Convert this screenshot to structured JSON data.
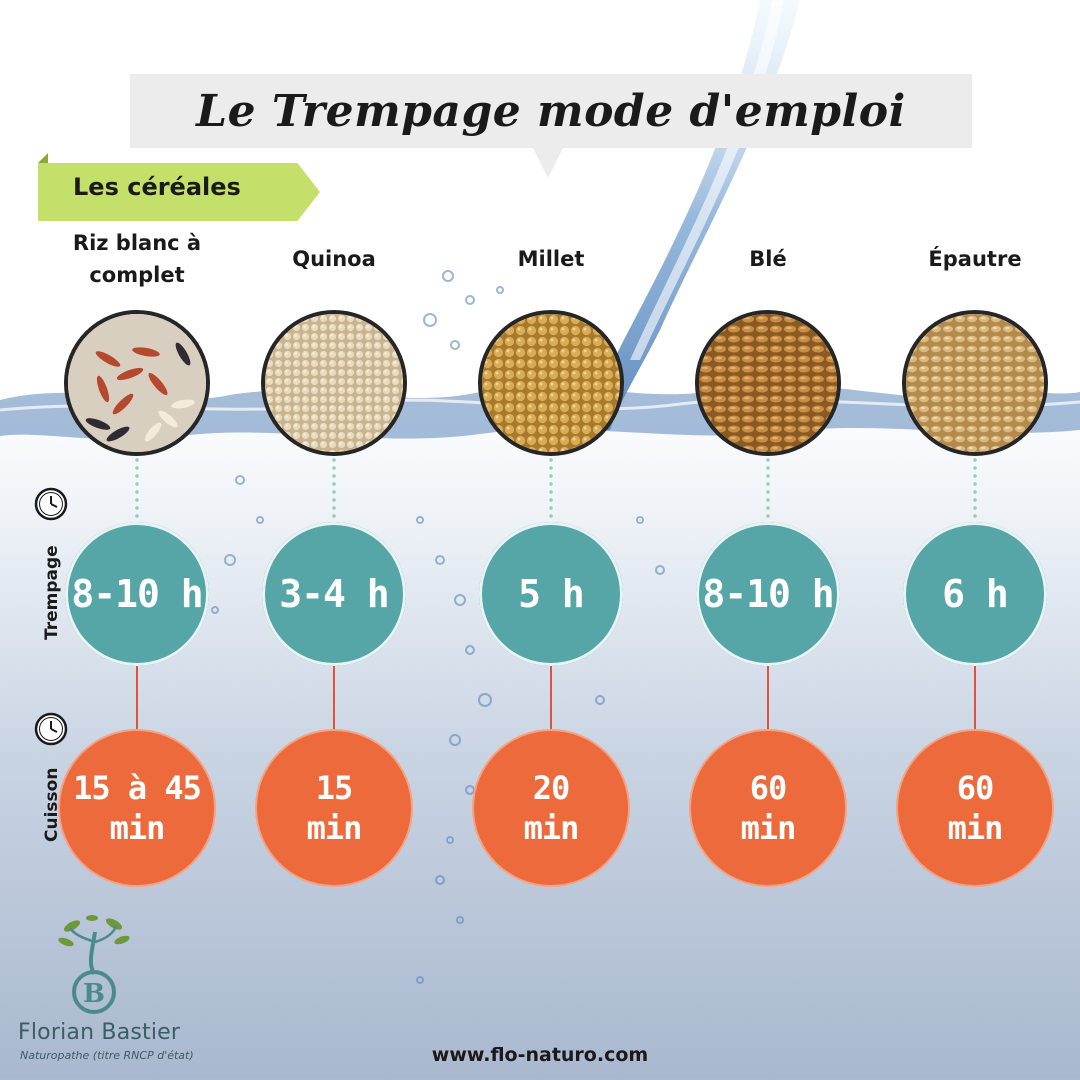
{
  "title": "Le Trempage mode d'emploi",
  "category": "Les céréales",
  "labels": {
    "soaking": "Trempage",
    "cooking": "Cuisson"
  },
  "grains": [
    {
      "name_line1": "Riz blanc à",
      "name_line2": "complet",
      "soak": "8-10 h",
      "cook_line1": "15 à 45",
      "cook_line2": "min",
      "icon": "rice-grains-image"
    },
    {
      "name_line1": "Quinoa",
      "name_line2": "",
      "soak": "3-4 h",
      "cook_line1": "15",
      "cook_line2": "min",
      "icon": "quinoa-grains-image"
    },
    {
      "name_line1": "Millet",
      "name_line2": "",
      "soak": "5 h",
      "cook_line1": "20",
      "cook_line2": "min",
      "icon": "millet-grains-image"
    },
    {
      "name_line1": "Blé",
      "name_line2": "",
      "soak": "8-10 h",
      "cook_line1": "60",
      "cook_line2": "min",
      "icon": "wheat-grains-image"
    },
    {
      "name_line1": "Épautre",
      "name_line2": "",
      "soak": "6 h",
      "cook_line1": "60",
      "cook_line2": "min",
      "icon": "spelt-grains-image"
    }
  ],
  "brand": {
    "name": "Florian Bastier",
    "subtitle": "Naturopathe (titre RNCP d'état)"
  },
  "footer": {
    "url": "www.flo-naturo.com"
  },
  "colors": {
    "soak_circle": "#56a6a7",
    "cook_circle": "#ec6a3b",
    "ribbon": "#c5e06a",
    "title_box": "#ececec"
  }
}
